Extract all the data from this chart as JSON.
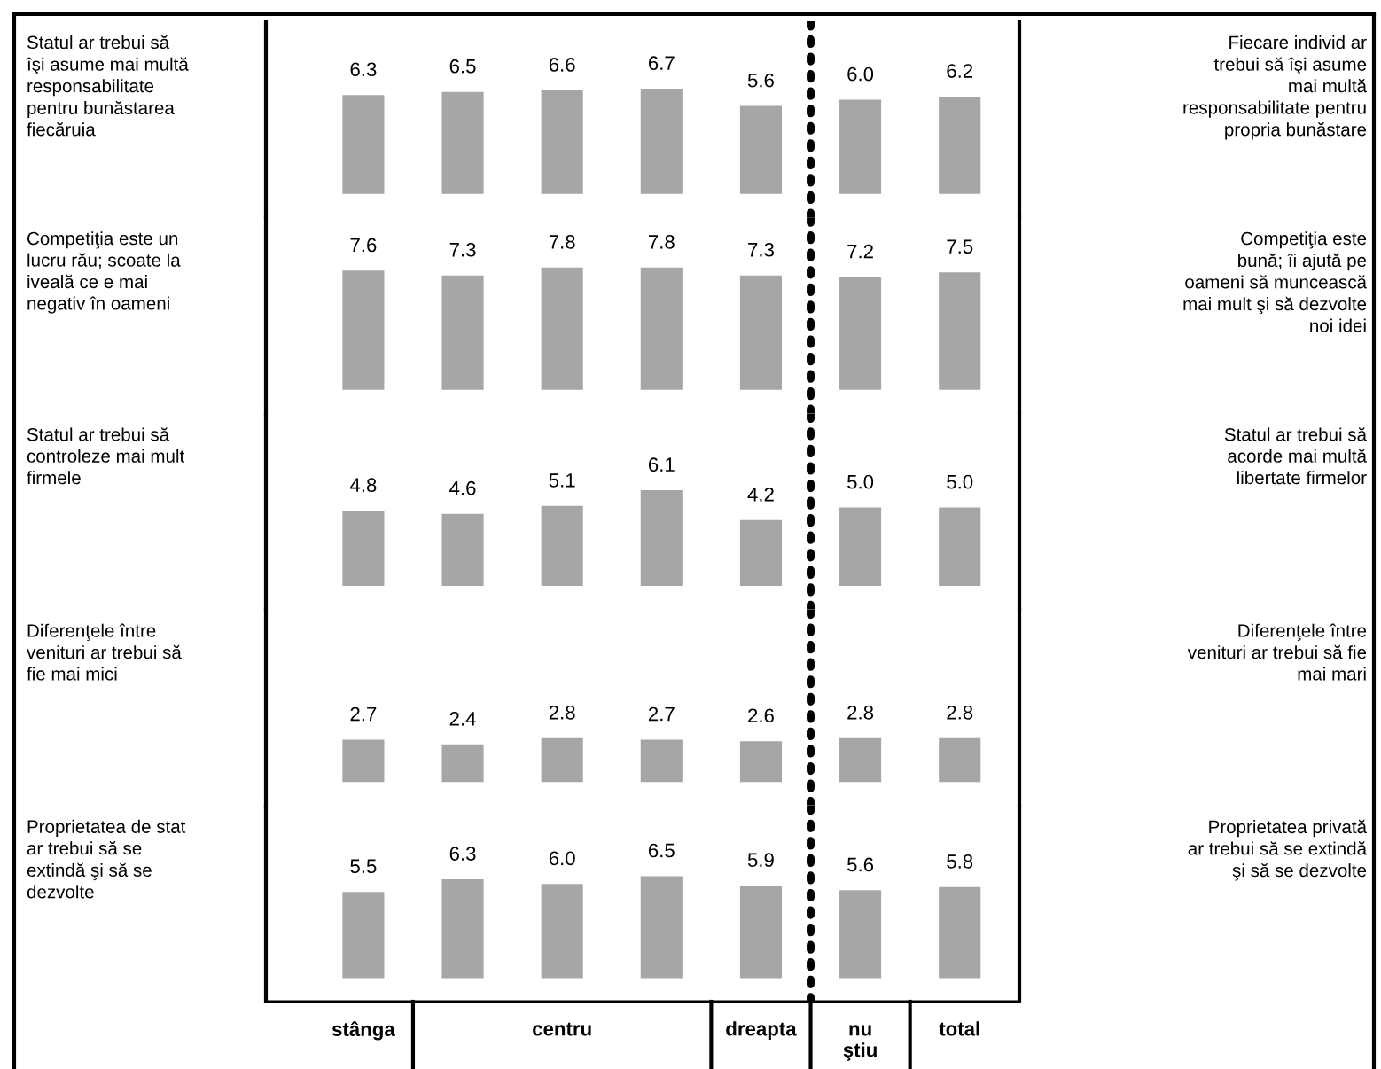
{
  "chart_data": [
    {
      "type": "bar",
      "values": [
        6.3,
        6.5,
        6.6,
        6.7,
        5.6,
        6.0,
        6.2
      ],
      "value_labels": [
        "6.3",
        "6.5",
        "6.6",
        "6.7",
        "5.6",
        "6.0",
        "6.2"
      ],
      "color": "#a6a6a6",
      "ylim": [
        -1.5,
        11
      ],
      "annotations": [
        "Statul ar trebui să\nîşi asume mai multă\nresponsabilitate\npentru bunăstarea\nfiecăruia",
        "Fiecare individ ar\ntrebui să îşi asume\nmai multă\nresponsabilitate pentru\npropria bunăstare"
      ]
    },
    {
      "type": "bar",
      "values": [
        7.6,
        7.3,
        7.8,
        7.8,
        7.3,
        7.2,
        7.5
      ],
      "value_labels": [
        "7.6",
        "7.3",
        "7.8",
        "7.8",
        "7.3",
        "7.2",
        "7.5"
      ],
      "color": "#a6a6a6",
      "ylim": [
        -1.5,
        11
      ],
      "annotations": [
        "Competiţia este un\nlucru rău; scoate la\niveală ce e mai\nnegativ în oameni",
        "Competiţia este\nbună; îi ajută pe\noameni să muncească\nmai mult şi să dezvolte\nnoi idei"
      ]
    },
    {
      "type": "bar",
      "values": [
        4.8,
        4.6,
        5.1,
        6.1,
        4.2,
        5.0,
        5.0
      ],
      "value_labels": [
        "4.8",
        "4.6",
        "5.1",
        "6.1",
        "4.2",
        "5.0",
        "5.0"
      ],
      "color": "#a6a6a6",
      "ylim": [
        -1.5,
        11
      ],
      "annotations": [
        "Statul ar trebui să\ncontroleze mai mult\nfirmele",
        "Statul ar trebui să\nacorde mai multă\nlibertate firmelor"
      ]
    },
    {
      "type": "bar",
      "values": [
        2.7,
        2.4,
        2.8,
        2.7,
        2.6,
        2.8,
        2.8
      ],
      "value_labels": [
        "2.7",
        "2.4",
        "2.8",
        "2.7",
        "2.6",
        "2.8",
        "2.8"
      ],
      "color": "#a6a6a6",
      "ylim": [
        -1.5,
        11
      ],
      "annotations": [
        "Diferenţele între\nvenituri ar trebui să\nfie mai mici",
        "Diferenţele între\nvenituri ar trebui să fie\nmai mari"
      ]
    },
    {
      "type": "bar",
      "categories": [
        "stânga",
        null,
        "centru",
        null,
        "dreapta",
        "nu\nştiu",
        "total"
      ],
      "values": [
        5.5,
        6.3,
        6.0,
        6.5,
        5.9,
        5.6,
        5.8
      ],
      "value_labels": [
        "5.5",
        "6.3",
        "6.0",
        "6.5",
        "5.9",
        "5.6",
        "5.8"
      ],
      "color": "#a6a6a6",
      "ylim": [
        -1.5,
        11
      ],
      "tick_labels": "x",
      "annotations": [
        "Proprietatea de stat\nar trebui să se\nextindă şi să se\ndezvolte",
        "Proprietatea privată\nar trebui să se extindă\nşi să se dezvolte"
      ]
    }
  ]
}
